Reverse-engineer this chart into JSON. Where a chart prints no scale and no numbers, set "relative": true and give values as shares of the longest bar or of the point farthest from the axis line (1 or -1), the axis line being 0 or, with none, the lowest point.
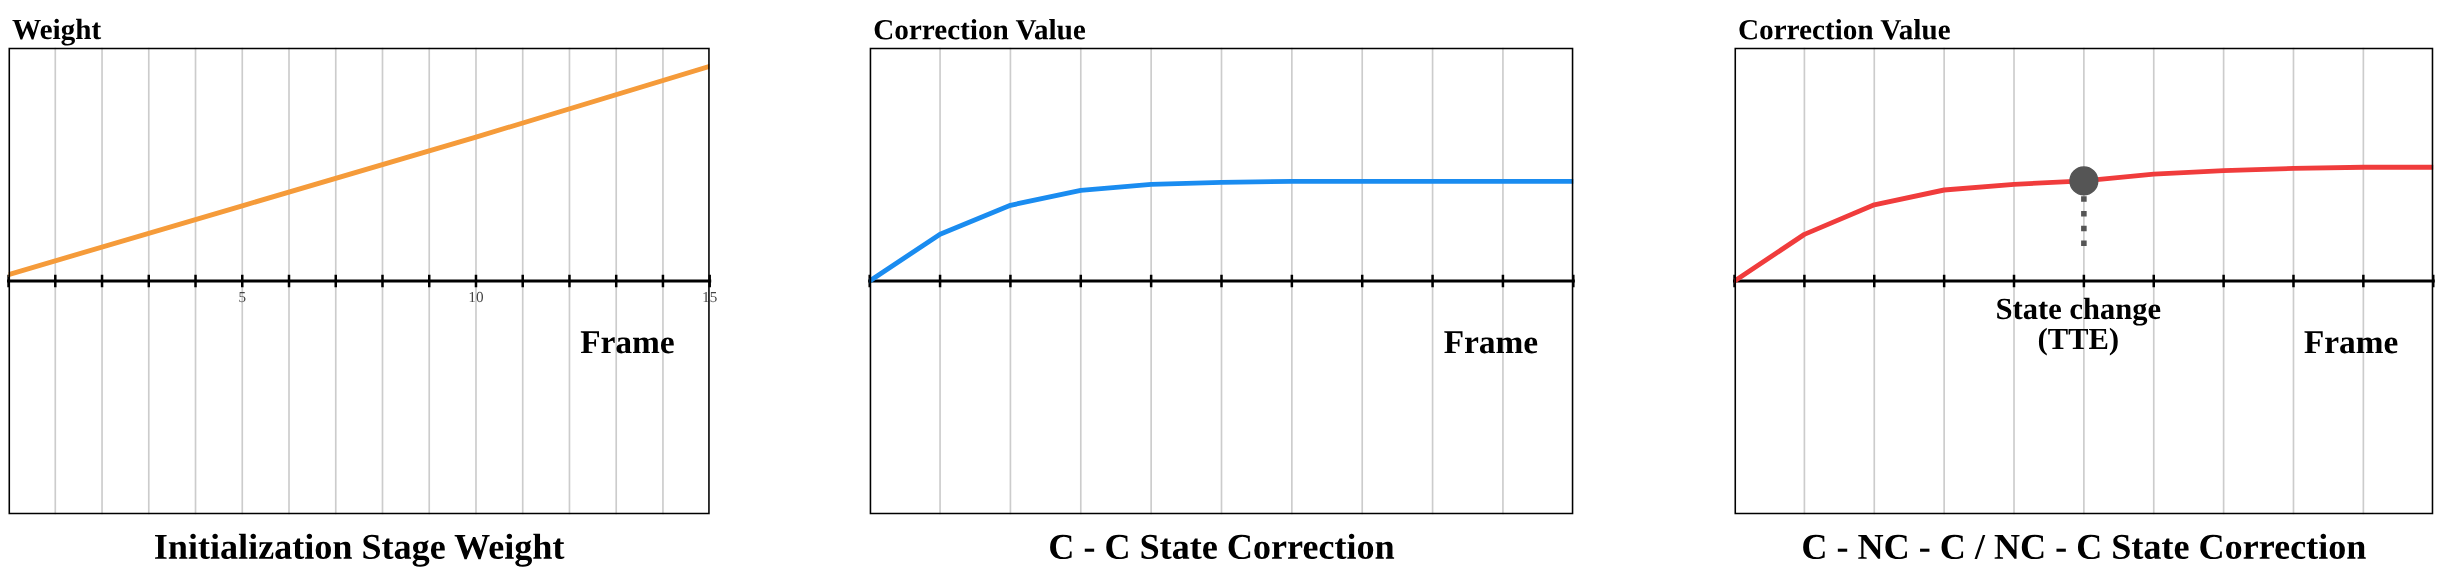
{
  "chart_data": [
    {
      "type": "line",
      "title": "Initialization Stage Weight",
      "xlabel": "Frame",
      "ylabel": "Weight",
      "relative": true,
      "grid": "x",
      "x": [
        0,
        5,
        10,
        15
      ],
      "xlim": [
        0,
        15
      ],
      "xticks": [
        {
          "value": 0,
          "label": null
        },
        {
          "value": 1,
          "label": null
        },
        {
          "value": 2,
          "label": null
        },
        {
          "value": 3,
          "label": null
        },
        {
          "value": 4,
          "label": null
        },
        5,
        {
          "value": 6,
          "label": null
        },
        {
          "value": 7,
          "label": null
        },
        {
          "value": 8,
          "label": null
        },
        {
          "value": 9,
          "label": null
        },
        10,
        {
          "value": 11,
          "label": null
        },
        {
          "value": 12,
          "label": null
        },
        {
          "value": 13,
          "label": null
        },
        {
          "value": 14,
          "label": null
        },
        15
      ],
      "series": [
        {
          "color": "#f59b3a",
          "values": [
            0.03,
            0.35,
            0.67,
            1
          ]
        }
      ]
    },
    {
      "type": "line",
      "title": "C - C State Correction",
      "xlabel": "Frame",
      "ylabel": "Correction Value",
      "relative": true,
      "grid": "x",
      "categories": [
        null,
        null,
        null,
        null,
        null,
        null,
        null,
        null,
        null,
        null,
        null
      ],
      "series": [
        {
          "color": "#1a8cf0",
          "values": [
            0,
            0.47,
            0.76,
            0.91,
            0.97,
            0.99,
            1,
            1,
            1,
            1,
            1
          ]
        }
      ]
    },
    {
      "type": "line",
      "title": "C - NC - C / NC - C State Correction",
      "xlabel": "Frame",
      "ylabel": "Correction Value",
      "relative": true,
      "grid": "x",
      "categories": [
        null,
        null,
        null,
        null,
        null,
        null,
        null,
        null,
        null,
        null,
        null
      ],
      "series": [
        {
          "color": "#f03c3c",
          "values": [
            0,
            0.41,
            0.67,
            0.8,
            0.85,
            0.88,
            0.94,
            0.97,
            0.99,
            1,
            1
          ]
        }
      ],
      "annotations": [
        "State change\n(TTE)"
      ]
    }
  ]
}
